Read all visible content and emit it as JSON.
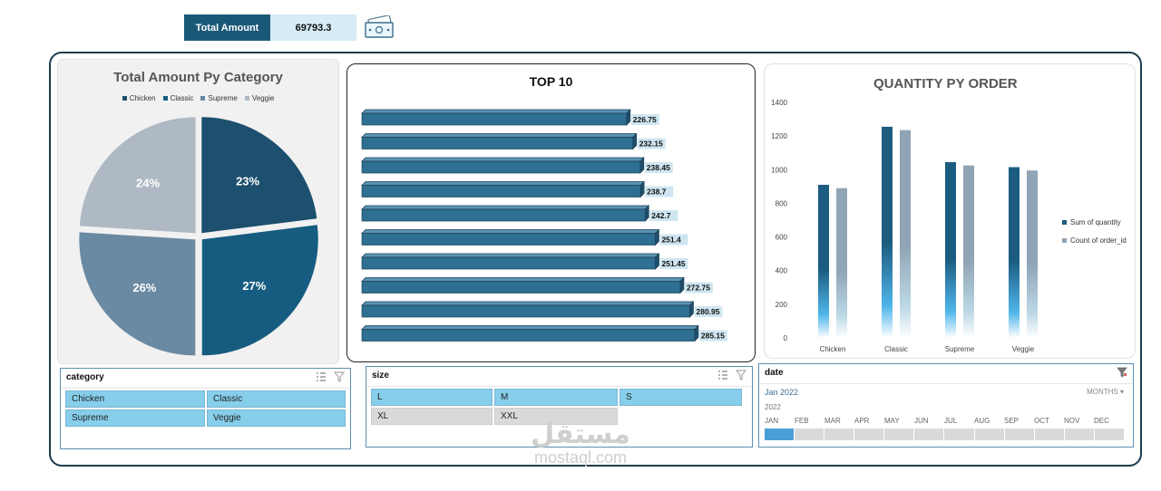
{
  "kpi": {
    "label": "Total Amount",
    "value": "69793.3"
  },
  "charts": {
    "pie": {
      "title": "Total Amount Py Category"
    },
    "bar": {
      "title": "TOP 10"
    },
    "col": {
      "title": "QUANTITY PY ORDER"
    }
  },
  "chart_data": [
    {
      "type": "pie",
      "title": "Total Amount Py Category",
      "categories": [
        "Chicken",
        "Classic",
        "Supreme",
        "Veggie"
      ],
      "values": [
        23,
        27,
        26,
        24
      ],
      "value_unit": "%",
      "colors": [
        "#1d4f6e",
        "#165c80",
        "#6a8aa3",
        "#aeb9c4"
      ],
      "legend": "top"
    },
    {
      "type": "bar",
      "orientation": "horizontal",
      "title": "TOP 10",
      "values": [
        226.75,
        232.15,
        238.45,
        238.7,
        242.7,
        251.4,
        251.45,
        272.75,
        280.95,
        285.15
      ],
      "data_labels": true,
      "color": "#2e6f92"
    },
    {
      "type": "bar",
      "title": "QUANTITY PY ORDER",
      "categories": [
        "Chicken",
        "Classic",
        "Supreme",
        "Veggie"
      ],
      "series": [
        {
          "name": "Sum of quantity",
          "values": [
            910,
            1255,
            1045,
            1015
          ],
          "color": "#1c5c80"
        },
        {
          "name": "Count of order_id",
          "values": [
            890,
            1235,
            1025,
            995
          ],
          "color": "#8fa4b5"
        }
      ],
      "ylim": [
        0,
        1400
      ],
      "yticks": [
        0,
        200,
        400,
        600,
        800,
        1000,
        1200,
        1400
      ],
      "legend": "right"
    }
  ],
  "slicers": {
    "category": {
      "title": "category",
      "items": [
        "Chicken",
        "Classic",
        "Supreme",
        "Veggie"
      ]
    },
    "size": {
      "title": "size",
      "items": [
        "L",
        "M",
        "S",
        "XL",
        "XXL"
      ]
    },
    "date": {
      "title": "date",
      "selected": "Jan 2022",
      "level": "MONTHS",
      "year": "2022",
      "months": [
        "JAN",
        "FEB",
        "MAR",
        "APR",
        "MAY",
        "JUN",
        "JUL",
        "AUG",
        "SEP",
        "OCT",
        "NOV",
        "DEC"
      ]
    }
  },
  "watermark": {
    "arabic": "مستقل",
    "latin": "mostaql.com"
  }
}
